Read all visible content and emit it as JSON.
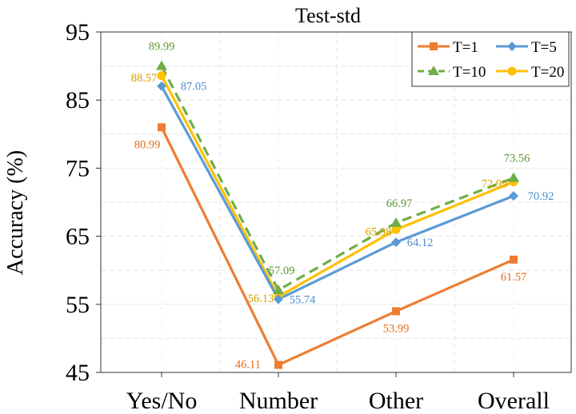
{
  "chart_data": {
    "type": "line",
    "title": "Test-std",
    "xlabel": "",
    "ylabel": "Accuracy (%)",
    "categories": [
      "Yes/No",
      "Number",
      "Other",
      "Overall"
    ],
    "ylim": [
      45,
      95
    ],
    "yticks": [
      45,
      55,
      65,
      75,
      85,
      95
    ],
    "grid": true,
    "legend_position": "top-right",
    "series": [
      {
        "name": "T=1",
        "color": "#ED7D31",
        "marker": "square",
        "dash": "solid",
        "values": [
          80.99,
          46.11,
          53.99,
          61.57
        ]
      },
      {
        "name": "T=5",
        "color": "#5B9BD5",
        "marker": "diamond",
        "dash": "solid",
        "values": [
          87.05,
          55.74,
          64.12,
          70.92
        ]
      },
      {
        "name": "T=10",
        "color": "#70AD47",
        "marker": "triangle",
        "dash": "dashed",
        "values": [
          89.99,
          57.09,
          66.97,
          73.56
        ]
      },
      {
        "name": "T=20",
        "color": "#FFC000",
        "marker": "circle",
        "dash": "solid",
        "values": [
          88.57,
          56.13,
          65.98,
          72.99
        ]
      }
    ],
    "data_labels": [
      {
        "series": "T=1",
        "text": "80.99"
      },
      {
        "series": "T=1",
        "text": "46.11"
      },
      {
        "series": "T=1",
        "text": "53.99"
      },
      {
        "series": "T=1",
        "text": "61.57"
      },
      {
        "series": "T=5",
        "text": "87.05"
      },
      {
        "series": "T=5",
        "text": "55.74"
      },
      {
        "series": "T=5",
        "text": "64.12"
      },
      {
        "series": "T=5",
        "text": "70.92"
      },
      {
        "series": "T=10",
        "text": "89.99"
      },
      {
        "series": "T=10",
        "text": "57.09"
      },
      {
        "series": "T=10",
        "text": "66.97"
      },
      {
        "series": "T=10",
        "text": "73.56"
      },
      {
        "series": "T=20",
        "text": "88.57"
      },
      {
        "series": "T=20",
        "text": "56.13"
      },
      {
        "series": "T=20",
        "text": "65.98"
      },
      {
        "series": "T=20",
        "text": "72.99"
      }
    ],
    "label_colors": {
      "T=1": "#E36C1E",
      "T=5": "#4A90D0",
      "T=10": "#5B9A32",
      "T=20": "#D4A000"
    }
  }
}
